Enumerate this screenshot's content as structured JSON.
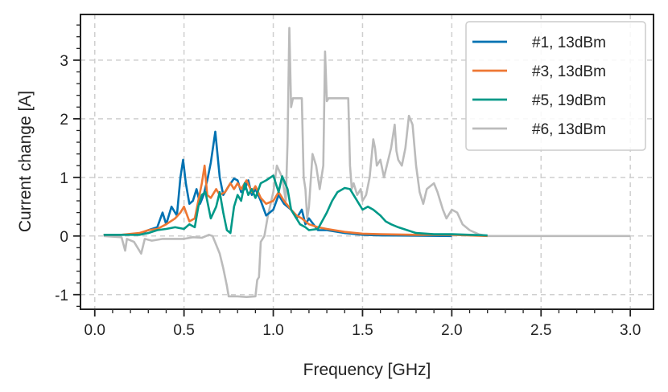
{
  "chart_data": {
    "type": "line",
    "xlabel": "Frequency [GHz]",
    "ylabel": "Current change [A]",
    "xlim": [
      -0.08,
      3.13
    ],
    "ylim": [
      -1.25,
      3.78
    ],
    "xticks": [
      0.0,
      0.5,
      1.0,
      1.5,
      2.0,
      2.5,
      3.0
    ],
    "xtick_labels": [
      "0.0",
      "0.5",
      "1.0",
      "1.5",
      "2.0",
      "2.5",
      "3.0"
    ],
    "yticks": [
      -1,
      0,
      1,
      2,
      3
    ],
    "ytick_labels": [
      "-1",
      "0",
      "1",
      "2",
      "3"
    ],
    "grid": true,
    "legend_position": "top-right",
    "series": [
      {
        "name": "#1, 13dBm",
        "color": "#0072B2",
        "points": [
          [
            0.05,
            0.02
          ],
          [
            0.15,
            0.02
          ],
          [
            0.25,
            0.03
          ],
          [
            0.3,
            0.1
          ],
          [
            0.35,
            0.15
          ],
          [
            0.38,
            0.4
          ],
          [
            0.4,
            0.2
          ],
          [
            0.43,
            0.5
          ],
          [
            0.46,
            0.35
          ],
          [
            0.48,
            1.0
          ],
          [
            0.495,
            1.3
          ],
          [
            0.51,
            0.9
          ],
          [
            0.53,
            0.55
          ],
          [
            0.55,
            0.6
          ],
          [
            0.57,
            0.8
          ],
          [
            0.59,
            0.55
          ],
          [
            0.61,
            0.7
          ],
          [
            0.63,
            0.95
          ],
          [
            0.65,
            1.25
          ],
          [
            0.675,
            1.78
          ],
          [
            0.7,
            1.0
          ],
          [
            0.72,
            0.7
          ],
          [
            0.75,
            0.85
          ],
          [
            0.78,
            0.98
          ],
          [
            0.8,
            0.95
          ],
          [
            0.82,
            0.75
          ],
          [
            0.84,
            0.8
          ],
          [
            0.86,
            0.95
          ],
          [
            0.88,
            0.7
          ],
          [
            0.9,
            0.8
          ],
          [
            0.93,
            0.6
          ],
          [
            0.96,
            0.35
          ],
          [
            1.0,
            0.45
          ],
          [
            1.03,
            0.7
          ],
          [
            1.06,
            0.55
          ],
          [
            1.1,
            0.45
          ],
          [
            1.13,
            0.3
          ],
          [
            1.16,
            0.45
          ],
          [
            1.18,
            0.2
          ],
          [
            1.2,
            0.3
          ],
          [
            1.25,
            0.1
          ],
          [
            1.3,
            0.1
          ],
          [
            1.4,
            0.05
          ],
          [
            1.5,
            0.02
          ],
          [
            1.6,
            0.01
          ],
          [
            2.0,
            0.0
          ]
        ]
      },
      {
        "name": "#3, 13dBm",
        "color": "#EE7733",
        "points": [
          [
            0.05,
            0.02
          ],
          [
            0.15,
            0.02
          ],
          [
            0.25,
            0.05
          ],
          [
            0.3,
            0.1
          ],
          [
            0.35,
            0.12
          ],
          [
            0.4,
            0.2
          ],
          [
            0.45,
            0.3
          ],
          [
            0.48,
            0.4
          ],
          [
            0.5,
            0.5
          ],
          [
            0.53,
            0.25
          ],
          [
            0.56,
            0.3
          ],
          [
            0.58,
            0.6
          ],
          [
            0.6,
            0.9
          ],
          [
            0.615,
            1.2
          ],
          [
            0.63,
            0.7
          ],
          [
            0.65,
            0.65
          ],
          [
            0.68,
            0.8
          ],
          [
            0.7,
            0.7
          ],
          [
            0.73,
            0.75
          ],
          [
            0.76,
            0.9
          ],
          [
            0.78,
            0.8
          ],
          [
            0.8,
            0.9
          ],
          [
            0.82,
            0.8
          ],
          [
            0.85,
            0.95
          ],
          [
            0.88,
            0.75
          ],
          [
            0.9,
            0.85
          ],
          [
            0.93,
            0.65
          ],
          [
            0.96,
            0.55
          ],
          [
            1.0,
            0.6
          ],
          [
            1.03,
            0.75
          ],
          [
            1.06,
            0.6
          ],
          [
            1.1,
            0.45
          ],
          [
            1.13,
            0.35
          ],
          [
            1.16,
            0.3
          ],
          [
            1.2,
            0.2
          ],
          [
            1.25,
            0.15
          ],
          [
            1.3,
            0.12
          ],
          [
            1.4,
            0.07
          ],
          [
            1.5,
            0.04
          ],
          [
            1.6,
            0.03
          ],
          [
            1.8,
            0.02
          ],
          [
            2.0,
            0.02
          ],
          [
            2.2,
            0.0
          ]
        ]
      },
      {
        "name": "#5, 19dBm",
        "color": "#009988",
        "points": [
          [
            0.05,
            0.02
          ],
          [
            0.15,
            0.02
          ],
          [
            0.25,
            0.02
          ],
          [
            0.3,
            0.05
          ],
          [
            0.35,
            0.1
          ],
          [
            0.4,
            0.12
          ],
          [
            0.45,
            0.15
          ],
          [
            0.5,
            0.12
          ],
          [
            0.53,
            0.2
          ],
          [
            0.56,
            0.15
          ],
          [
            0.58,
            0.5
          ],
          [
            0.6,
            0.7
          ],
          [
            0.62,
            0.75
          ],
          [
            0.65,
            0.3
          ],
          [
            0.68,
            0.5
          ],
          [
            0.7,
            0.75
          ],
          [
            0.72,
            0.4
          ],
          [
            0.74,
            0.1
          ],
          [
            0.76,
            0.05
          ],
          [
            0.78,
            0.5
          ],
          [
            0.8,
            0.7
          ],
          [
            0.82,
            0.6
          ],
          [
            0.84,
            0.9
          ],
          [
            0.86,
            0.7
          ],
          [
            0.88,
            0.8
          ],
          [
            0.9,
            0.65
          ],
          [
            0.93,
            0.9
          ],
          [
            0.96,
            0.95
          ],
          [
            1.0,
            1.03
          ],
          [
            1.03,
            0.75
          ],
          [
            1.05,
            1.02
          ],
          [
            1.08,
            0.8
          ],
          [
            1.1,
            0.45
          ],
          [
            1.12,
            0.35
          ],
          [
            1.15,
            0.2
          ],
          [
            1.18,
            0.15
          ],
          [
            1.2,
            0.1
          ],
          [
            1.25,
            0.12
          ],
          [
            1.3,
            0.4
          ],
          [
            1.33,
            0.6
          ],
          [
            1.36,
            0.75
          ],
          [
            1.4,
            0.82
          ],
          [
            1.43,
            0.8
          ],
          [
            1.46,
            0.65
          ],
          [
            1.48,
            0.55
          ],
          [
            1.5,
            0.45
          ],
          [
            1.53,
            0.5
          ],
          [
            1.56,
            0.45
          ],
          [
            1.6,
            0.35
          ],
          [
            1.63,
            0.25
          ],
          [
            1.66,
            0.2
          ],
          [
            1.7,
            0.15
          ],
          [
            1.75,
            0.1
          ],
          [
            1.8,
            0.05
          ],
          [
            1.9,
            0.03
          ],
          [
            2.0,
            0.03
          ],
          [
            2.1,
            0.02
          ],
          [
            2.2,
            0.01
          ]
        ]
      },
      {
        "name": "#6, 13dBm",
        "color": "#BBBBBB",
        "points": [
          [
            0.05,
            0.0
          ],
          [
            0.15,
            -0.02
          ],
          [
            0.17,
            -0.25
          ],
          [
            0.18,
            -0.05
          ],
          [
            0.22,
            -0.1
          ],
          [
            0.26,
            -0.3
          ],
          [
            0.28,
            -0.05
          ],
          [
            0.32,
            -0.08
          ],
          [
            0.38,
            -0.05
          ],
          [
            0.45,
            -0.05
          ],
          [
            0.5,
            -0.05
          ],
          [
            0.55,
            -0.02
          ],
          [
            0.6,
            -0.03
          ],
          [
            0.64,
            0.02
          ],
          [
            0.66,
            0.0
          ],
          [
            0.68,
            -0.15
          ],
          [
            0.7,
            -0.3
          ],
          [
            0.72,
            -0.55
          ],
          [
            0.74,
            -0.85
          ],
          [
            0.75,
            -1.03
          ],
          [
            0.8,
            -1.03
          ],
          [
            0.85,
            -1.04
          ],
          [
            0.9,
            -1.03
          ],
          [
            0.91,
            -0.75
          ],
          [
            0.92,
            -0.7
          ],
          [
            0.93,
            -0.1
          ],
          [
            0.95,
            0.0
          ],
          [
            0.97,
            0.35
          ],
          [
            1.0,
            0.75
          ],
          [
            1.02,
            1.2
          ],
          [
            1.05,
            1.0
          ],
          [
            1.07,
            0.6
          ],
          [
            1.08,
            1.6
          ],
          [
            1.09,
            3.55
          ],
          [
            1.1,
            2.2
          ],
          [
            1.11,
            2.35
          ],
          [
            1.16,
            2.35
          ],
          [
            1.17,
            1.0
          ],
          [
            1.18,
            0.8
          ],
          [
            1.19,
            0.3
          ],
          [
            1.2,
            0.5
          ],
          [
            1.22,
            1.4
          ],
          [
            1.24,
            1.2
          ],
          [
            1.26,
            0.8
          ],
          [
            1.28,
            1.2
          ],
          [
            1.29,
            3.15
          ],
          [
            1.3,
            2.3
          ],
          [
            1.31,
            2.35
          ],
          [
            1.42,
            2.35
          ],
          [
            1.43,
            1.2
          ],
          [
            1.44,
            0.8
          ],
          [
            1.45,
            0.9
          ],
          [
            1.47,
            0.7
          ],
          [
            1.49,
            0.8
          ],
          [
            1.5,
            0.6
          ],
          [
            1.52,
            0.7
          ],
          [
            1.54,
            1.0
          ],
          [
            1.56,
            1.65
          ],
          [
            1.57,
            1.5
          ],
          [
            1.58,
            1.2
          ],
          [
            1.6,
            1.3
          ],
          [
            1.62,
            1.0
          ],
          [
            1.64,
            1.25
          ],
          [
            1.66,
            1.5
          ],
          [
            1.68,
            1.9
          ],
          [
            1.69,
            1.45
          ],
          [
            1.7,
            1.3
          ],
          [
            1.72,
            1.2
          ],
          [
            1.74,
            1.5
          ],
          [
            1.76,
            2.05
          ],
          [
            1.78,
            1.9
          ],
          [
            1.8,
            1.2
          ],
          [
            1.82,
            0.75
          ],
          [
            1.84,
            0.55
          ],
          [
            1.86,
            0.8
          ],
          [
            1.88,
            0.85
          ],
          [
            1.9,
            0.9
          ],
          [
            1.92,
            0.75
          ],
          [
            1.95,
            0.45
          ],
          [
            1.97,
            0.3
          ],
          [
            2.0,
            0.45
          ],
          [
            2.03,
            0.4
          ],
          [
            2.06,
            0.2
          ],
          [
            2.1,
            0.1
          ],
          [
            2.15,
            0.03
          ],
          [
            2.2,
            0.0
          ],
          [
            2.4,
            0.0
          ],
          [
            2.6,
            0.0
          ],
          [
            2.8,
            0.0
          ],
          [
            3.0,
            0.0
          ]
        ]
      }
    ]
  }
}
